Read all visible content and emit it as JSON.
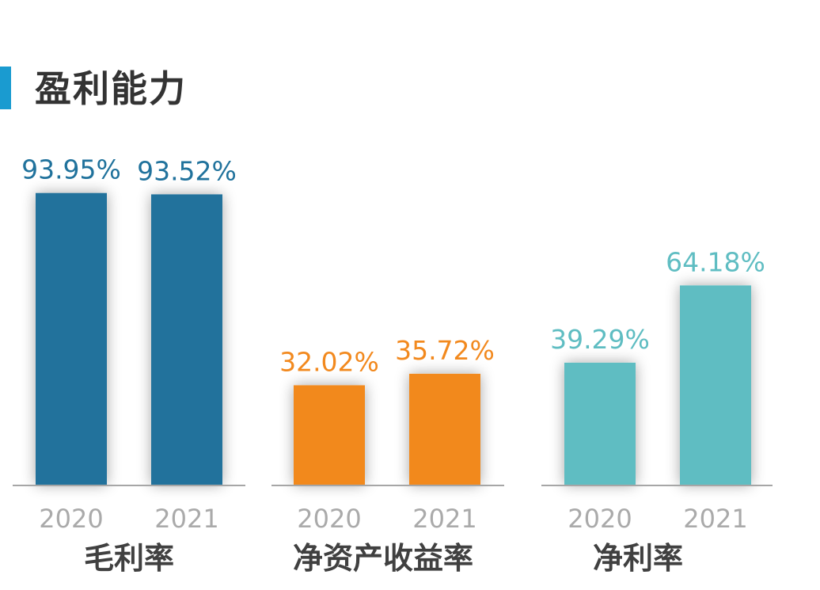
{
  "title": "盈利能力",
  "chart_data": [
    {
      "type": "bar",
      "name": "毛利率",
      "categories": [
        "2020",
        "2021"
      ],
      "values": [
        93.95,
        93.52
      ],
      "labels": [
        "93.95%",
        "93.52%"
      ],
      "color": "#20729c"
    },
    {
      "type": "bar",
      "name": "净资产收益率",
      "categories": [
        "2020",
        "2021"
      ],
      "values": [
        32.02,
        35.72
      ],
      "labels": [
        "32.02%",
        "35.72%"
      ],
      "color": "#f2891e"
    },
    {
      "type": "bar",
      "name": "净利率",
      "categories": [
        "2020",
        "2021"
      ],
      "values": [
        39.29,
        64.18
      ],
      "labels": [
        "39.29%",
        "64.18%"
      ],
      "color": "#5fbdc2"
    }
  ],
  "colors": {
    "accent": "#1a9bd0",
    "baseline": "#a6a6a6",
    "category_text": "#aaaaaa",
    "group_text": "#404040"
  }
}
